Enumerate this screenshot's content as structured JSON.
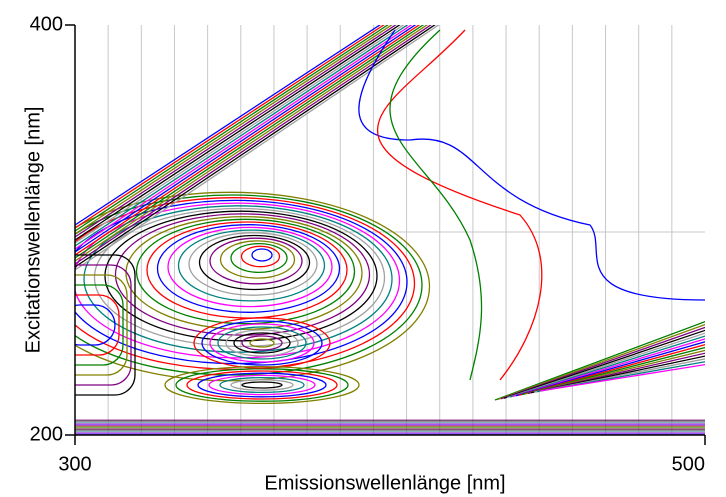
{
  "chart_data": {
    "type": "contour",
    "x_label": "Emissionswellenlänge [nm]",
    "y_label": "Excitationswellenlänge [nm]",
    "xlim": [
      300,
      500
    ],
    "xticks": [
      300,
      500
    ],
    "ylim": [
      200,
      400
    ],
    "yticks": [
      200,
      400
    ],
    "grid": true
  }
}
